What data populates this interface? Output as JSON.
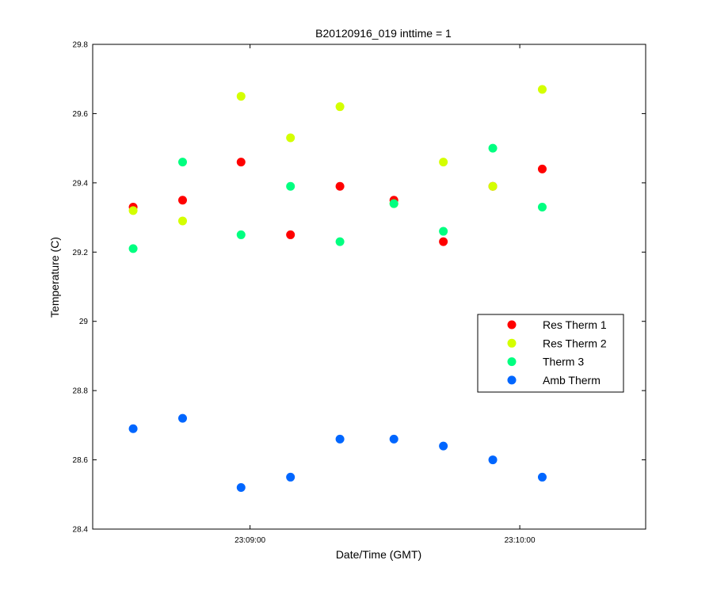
{
  "chart_data": {
    "type": "scatter",
    "title": "B20120916_019 inttime = 1",
    "xlabel": "Date/Time (GMT)",
    "ylabel": "Temperature (C)",
    "x_unit": "time (GMT)",
    "xlim": [
      "23:08:25",
      "23:10:28"
    ],
    "ylim": [
      28.4,
      29.8
    ],
    "x_ticks": [
      "23:09:00",
      "23:10:00"
    ],
    "y_ticks": [
      28.4,
      28.6,
      28.8,
      29,
      29.2,
      29.4,
      29.6,
      29.8
    ],
    "y_tick_labels": [
      "28.4",
      "28.6",
      "28.8",
      "29",
      "29.2",
      "29.4",
      "29.6",
      "29.8"
    ],
    "grid": false,
    "legend_position": "right",
    "x": [
      "23:08:34",
      "23:08:45",
      "23:08:58",
      "23:09:09",
      "23:09:20",
      "23:09:32",
      "23:09:43",
      "23:09:54",
      "23:10:05"
    ],
    "series": [
      {
        "name": "Res Therm 1",
        "color": "#ff0000",
        "values": [
          29.33,
          29.35,
          29.46,
          29.25,
          29.39,
          29.35,
          29.23,
          29.39,
          29.44
        ]
      },
      {
        "name": "Res Therm 2",
        "color": "#d4ff00",
        "values": [
          29.32,
          29.29,
          29.65,
          29.53,
          29.62,
          29.34,
          29.46,
          29.39,
          29.67
        ]
      },
      {
        "name": "Therm 3",
        "color": "#00ff80",
        "values": [
          29.21,
          29.46,
          29.25,
          29.39,
          29.23,
          29.34,
          29.26,
          29.5,
          29.33
        ]
      },
      {
        "name": "Amb Therm",
        "color": "#0066ff",
        "values": [
          28.69,
          28.72,
          28.52,
          28.55,
          28.66,
          28.66,
          28.64,
          28.6,
          28.55
        ]
      }
    ]
  }
}
